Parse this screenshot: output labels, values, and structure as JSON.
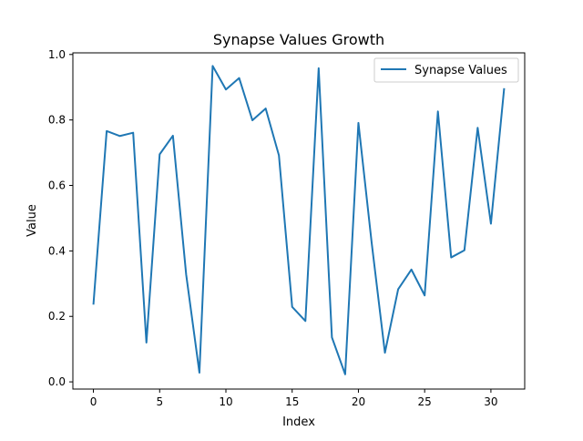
{
  "chart_data": {
    "type": "line",
    "title": "Synapse Values Growth",
    "xlabel": "Index",
    "ylabel": "Value",
    "xlim": [
      -1.55,
      32.55
    ],
    "ylim": [
      -0.022,
      1.005
    ],
    "xticks": [
      0,
      5,
      10,
      15,
      20,
      25,
      30
    ],
    "yticks": [
      0.0,
      0.2,
      0.4,
      0.6,
      0.8,
      1.0
    ],
    "xtick_labels": [
      "0",
      "5",
      "10",
      "15",
      "20",
      "25",
      "30"
    ],
    "ytick_labels": [
      "0.0",
      "0.2",
      "0.4",
      "0.6",
      "0.8",
      "1.0"
    ],
    "grid": false,
    "legend_position": "top-right",
    "series": [
      {
        "name": "Synapse Values",
        "color": "#1f77b4",
        "x": [
          0,
          1,
          2,
          3,
          4,
          5,
          6,
          7,
          8,
          9,
          10,
          11,
          12,
          13,
          14,
          15,
          16,
          17,
          18,
          19,
          20,
          21,
          22,
          23,
          24,
          25,
          26,
          27,
          28,
          29,
          30,
          31
        ],
        "values": [
          0.236,
          0.766,
          0.751,
          0.761,
          0.12,
          0.695,
          0.752,
          0.328,
          0.028,
          0.965,
          0.893,
          0.928,
          0.799,
          0.835,
          0.692,
          0.229,
          0.186,
          0.958,
          0.136,
          0.023,
          0.791,
          0.425,
          0.089,
          0.283,
          0.343,
          0.264,
          0.826,
          0.38,
          0.402,
          0.776,
          0.483,
          0.897
        ]
      }
    ]
  }
}
